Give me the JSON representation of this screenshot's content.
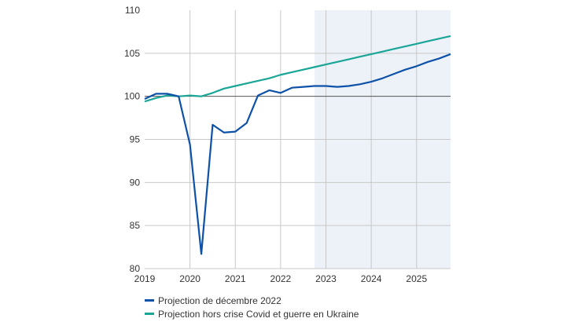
{
  "chart_data": {
    "type": "line",
    "x_start": 2019,
    "x_step": 0.25,
    "xlim": [
      2019,
      2025.75
    ],
    "ylim": [
      80,
      110
    ],
    "yticks": [
      80,
      85,
      90,
      95,
      100,
      105,
      110
    ],
    "xticks": [
      "2019",
      "2020",
      "2021",
      "2022",
      "2023",
      "2024",
      "2025"
    ],
    "grid": true,
    "shaded_region": [
      2022.75,
      2025.75
    ],
    "shaded_color": "#edf1f8",
    "legend_position": "bottom-left",
    "series": [
      {
        "name": "Projection de décembre 2022",
        "color": "#0d52a8",
        "values": [
          99.7,
          100.3,
          100.3,
          100.0,
          94.4,
          81.7,
          96.7,
          95.8,
          95.9,
          96.9,
          100.1,
          100.7,
          100.4,
          101.0,
          101.1,
          101.2,
          101.2,
          101.1,
          101.2,
          101.4,
          101.7,
          102.1,
          102.6,
          103.1,
          103.5,
          104.0,
          104.4,
          104.9
        ]
      },
      {
        "name": "Projection hors crise Covid et guerre en Ukraine",
        "color": "#1aa697",
        "values": [
          99.4,
          99.8,
          100.1,
          100.0,
          100.1,
          100.0,
          100.4,
          100.9,
          101.2,
          101.5,
          101.8,
          102.1,
          102.5,
          102.8,
          103.1,
          103.4,
          103.7,
          104.0,
          104.3,
          104.6,
          104.9,
          105.2,
          105.5,
          105.8,
          106.1,
          106.4,
          106.7,
          107.0
        ]
      }
    ]
  }
}
